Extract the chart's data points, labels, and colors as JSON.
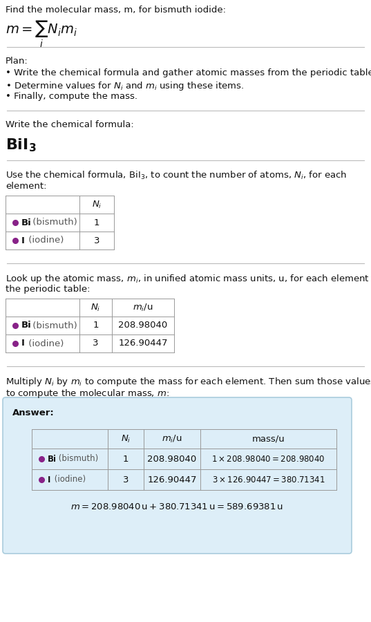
{
  "title_line1": "Find the molecular mass, m, for bismuth iodide:",
  "title_formula": "$m = \\sum_i N_i m_i$",
  "bg_color": "#ffffff",
  "plan_header": "Plan:",
  "plan_bullets": [
    "• Write the chemical formula and gather atomic masses from the periodic table.",
    "• Determine values for $N_i$ and $m_i$ using these items.",
    "• Finally, compute the mass."
  ],
  "step1_header": "Write the chemical formula:",
  "step1_formula": "$\\mathbf{BiI_3}$",
  "step2_header_line1": "Use the chemical formula, $\\mathrm{BiI_3}$, to count the number of atoms, $N_i$, for each",
  "step2_header_line2": "element:",
  "step2_col_header": "$N_i$",
  "step2_rows": [
    {
      "element": "Bi (bismuth)",
      "Ni": "1",
      "color": "#882288"
    },
    {
      "element": "I (iodine)",
      "Ni": "3",
      "color": "#882288"
    }
  ],
  "step3_header_line1": "Look up the atomic mass, $m_i$, in unified atomic mass units, u, for each element in",
  "step3_header_line2": "the periodic table:",
  "step3_col_headers": [
    "$N_i$",
    "$m_i$/u"
  ],
  "step3_rows": [
    {
      "element": "Bi (bismuth)",
      "Ni": "1",
      "mi": "208.98040",
      "color": "#882288"
    },
    {
      "element": "I (iodine)",
      "Ni": "3",
      "mi": "126.90447",
      "color": "#882288"
    }
  ],
  "step4_header_line1": "Multiply $N_i$ by $m_i$ to compute the mass for each element. Then sum those values",
  "step4_header_line2": "to compute the molecular mass, $m$:",
  "answer_box_color": "#ddeef8",
  "answer_box_border": "#aaccdd",
  "answer_label": "Answer:",
  "answer_col_headers": [
    "$N_i$",
    "$m_i$/u",
    "mass/u"
  ],
  "answer_rows": [
    {
      "element": "Bi (bismuth)",
      "Ni": "1",
      "mi": "208.98040",
      "mass": "$1 \\times 208.98040 = 208.98040$",
      "color": "#882288"
    },
    {
      "element": "I (iodine)",
      "Ni": "3",
      "mi": "126.90447",
      "mass": "$3 \\times 126.90447 = 380.71341$",
      "color": "#882288"
    }
  ],
  "final_answer": "$m = 208.98040\\,\\mathrm{u} + 380.71341\\,\\mathrm{u} = 589.69381\\,\\mathrm{u}$",
  "sep_color": "#bbbbbb",
  "table_color": "#999999",
  "fs": 9.5,
  "fs_small": 8.5,
  "fs_formula_title": 14,
  "fs_bii3": 16
}
